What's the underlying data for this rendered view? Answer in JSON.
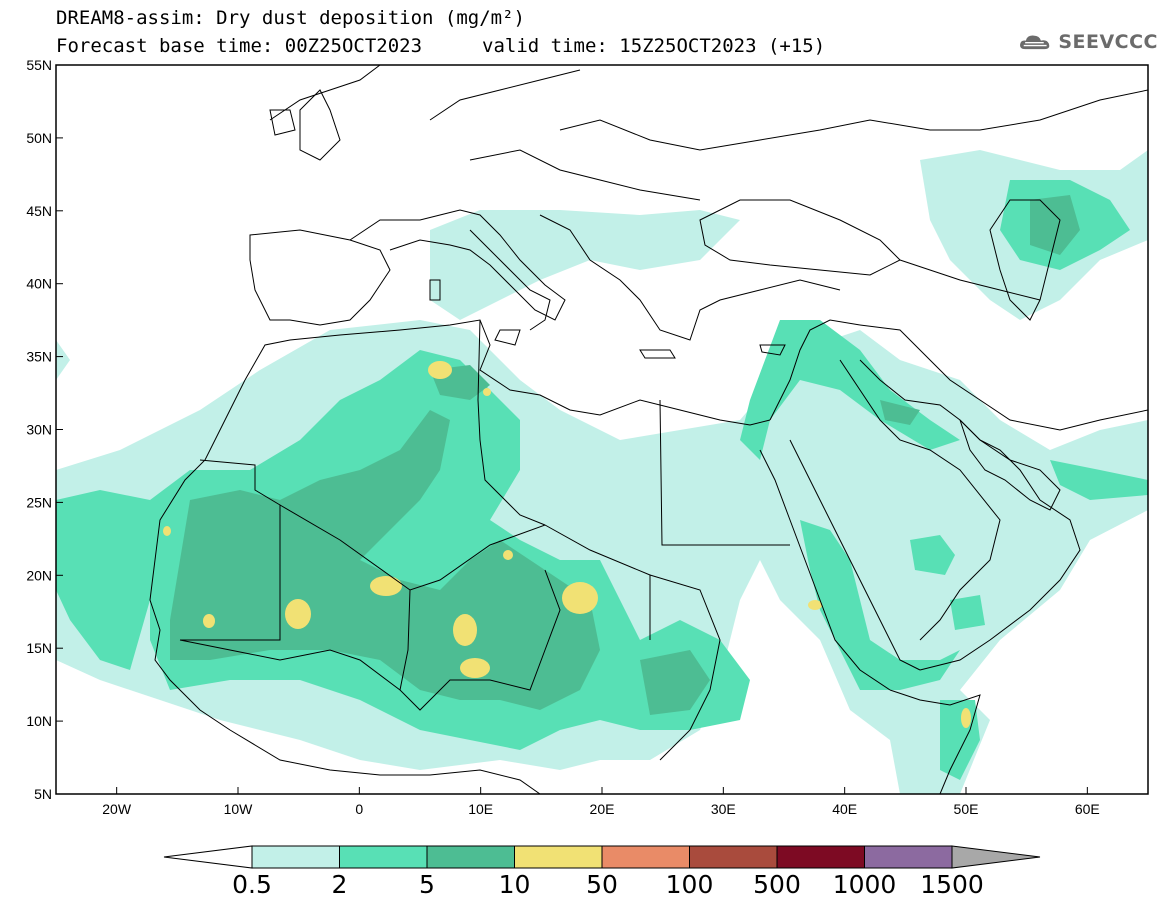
{
  "title": {
    "line1": "DREAM8-assim: Dry dust deposition (mg/m²)",
    "line2": "Forecast base time: 00Z25OCT2023",
    "valid": "valid time: 15Z25OCT2023 (+15)"
  },
  "logo": {
    "text": "SEEVCCC",
    "icon": "cloud-logo-icon"
  },
  "map": {
    "projection": "lat-lon",
    "lon_range": [
      -25,
      65
    ],
    "lat_range": [
      5,
      55
    ],
    "lat_ticks": [
      {
        "value": 55,
        "label": "55N"
      },
      {
        "value": 50,
        "label": "50N"
      },
      {
        "value": 45,
        "label": "45N"
      },
      {
        "value": 40,
        "label": "40N"
      },
      {
        "value": 35,
        "label": "35N"
      },
      {
        "value": 30,
        "label": "30N"
      },
      {
        "value": 25,
        "label": "25N"
      },
      {
        "value": 20,
        "label": "20N"
      },
      {
        "value": 15,
        "label": "15N"
      },
      {
        "value": 10,
        "label": "10N"
      },
      {
        "value": 5,
        "label": "5N"
      }
    ],
    "lon_ticks": [
      {
        "value": -20,
        "label": "20W"
      },
      {
        "value": -10,
        "label": "10W"
      },
      {
        "value": 0,
        "label": "0"
      },
      {
        "value": 10,
        "label": "10E"
      },
      {
        "value": 20,
        "label": "20E"
      },
      {
        "value": 30,
        "label": "30E"
      },
      {
        "value": 40,
        "label": "40E"
      },
      {
        "value": 50,
        "label": "50E"
      },
      {
        "value": 60,
        "label": "60E"
      }
    ]
  },
  "colorbar": {
    "levels": [
      "0.5",
      "2",
      "5",
      "10",
      "50",
      "100",
      "500",
      "1000",
      "1500"
    ],
    "colors": [
      "#c2f0e8",
      "#58e0b5",
      "#4dbd93",
      "#f1e174",
      "#e98b67",
      "#a94b3d",
      "#7d0a23",
      "#8c6aa0",
      "#a8a8a8"
    ]
  }
}
